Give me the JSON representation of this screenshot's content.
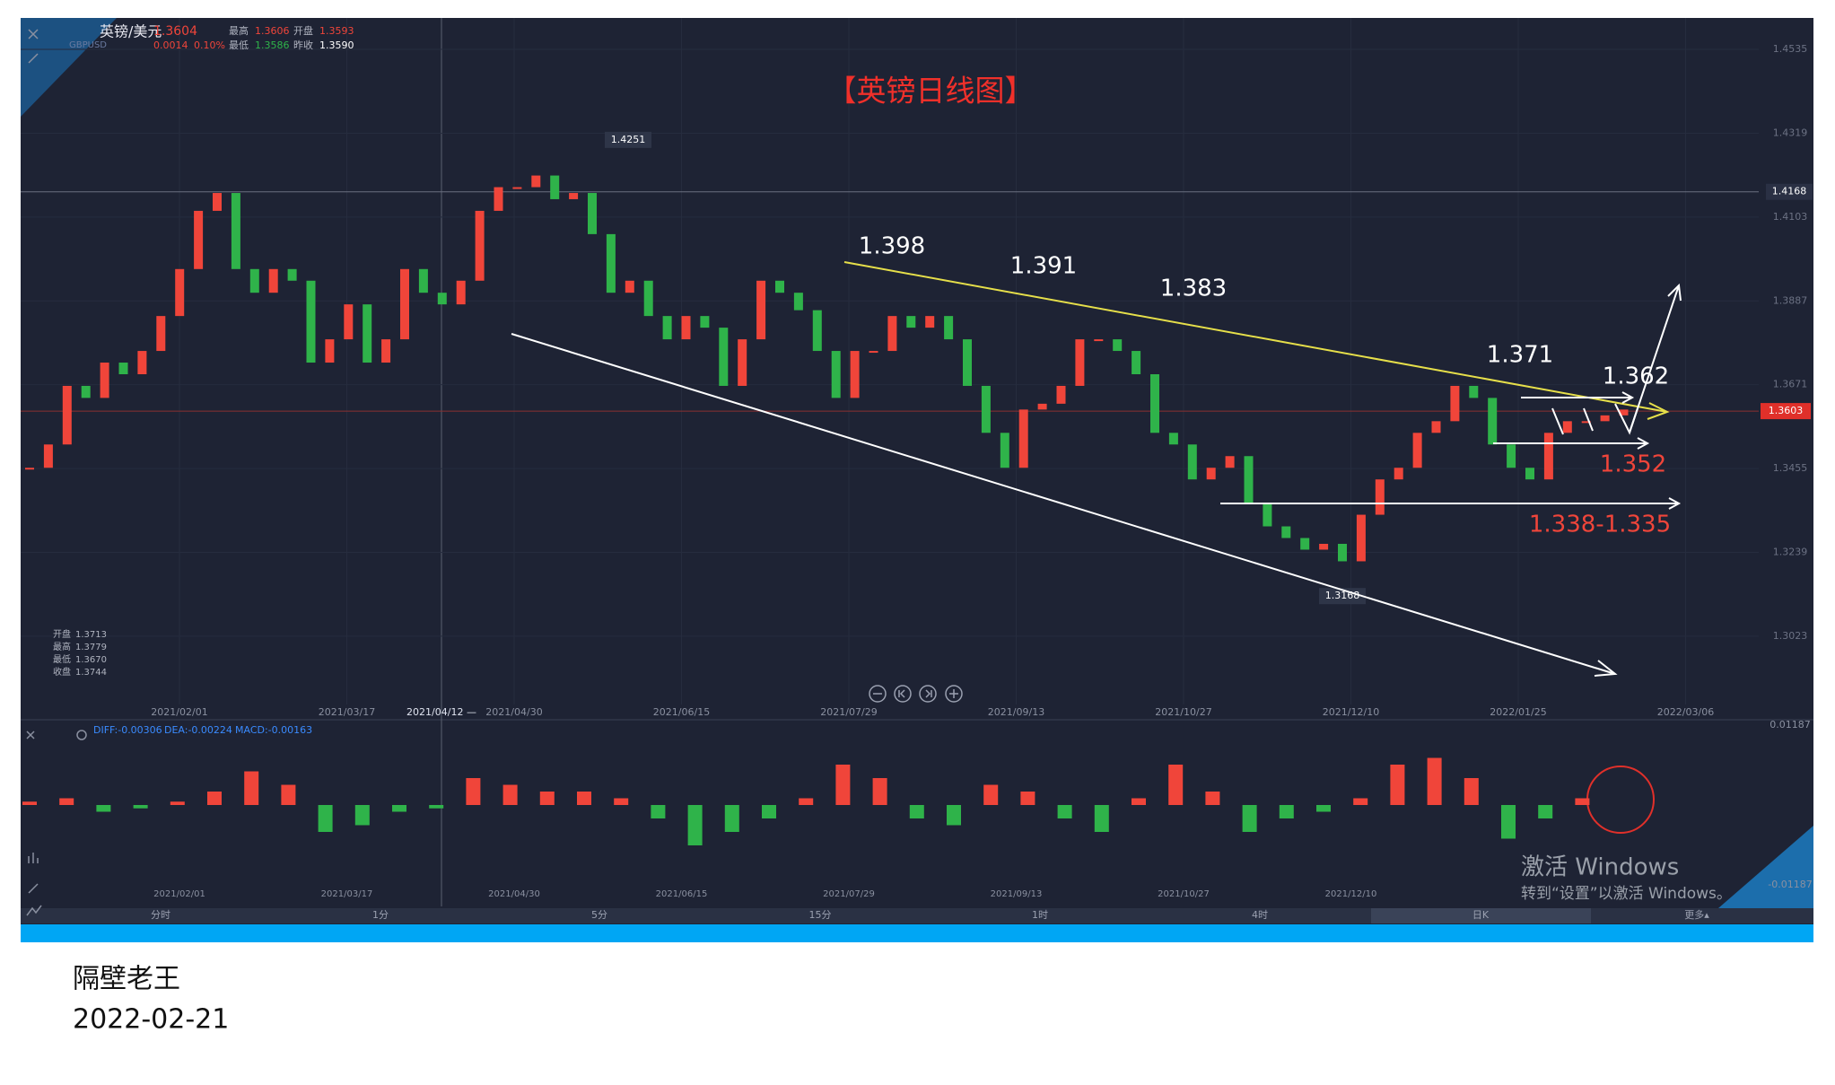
{
  "header": {
    "symbol": "英镑/美元",
    "code": "GBPUSD",
    "price": "1.3604",
    "change": "0.0014",
    "change_pct": "0.10%",
    "high_label": "最高",
    "high": "1.3606",
    "open_label": "开盘",
    "open": "1.3593",
    "low_label": "最低",
    "low": "1.3586",
    "prev_label": "昨收",
    "prev": "1.3590"
  },
  "ohlc_box": [
    {
      "label": "开盘",
      "value": "1.3713"
    },
    {
      "label": "最高",
      "value": "1.3779"
    },
    {
      "label": "最低",
      "value": "1.3670"
    },
    {
      "label": "收盘",
      "value": "1.3744"
    }
  ],
  "chart": {
    "title": "【英镑日线图】",
    "ylim": [
      1.2854,
      1.4616
    ],
    "yticks": [
      1.4535,
      1.4319,
      1.4103,
      1.3887,
      1.3671,
      1.3455,
      1.3239,
      1.3023
    ],
    "dates": [
      "2021/02/01",
      "2021/03/17",
      "2021/04/30",
      "2021/06/15",
      "2021/07/29",
      "2021/09/13",
      "2021/10/27",
      "2021/12/10",
      "2022/01/25",
      "2022/03/06"
    ],
    "crosshair_date": "2021/04/12 —",
    "high_marker": 1.4251,
    "low_marker": 1.3168,
    "alert_line": 1.4168,
    "current_line": 1.3603,
    "up_color": "#f0453a",
    "down_color": "#2fb34a",
    "closes": [
      1.3457,
      1.3517,
      1.3668,
      1.3637,
      1.3728,
      1.3698,
      1.3758,
      1.3848,
      1.3969,
      1.4119,
      1.4165,
      1.3969,
      1.3908,
      1.3969,
      1.3939,
      1.3728,
      1.3788,
      1.3878,
      1.3728,
      1.3788,
      1.3969,
      1.3908,
      1.3878,
      1.3939,
      1.4119,
      1.418,
      1.418,
      1.421,
      1.4149,
      1.4165,
      1.4059,
      1.3908,
      1.3939,
      1.3848,
      1.3788,
      1.3848,
      1.3818,
      1.3668,
      1.3788,
      1.3939,
      1.3908,
      1.3863,
      1.3758,
      1.3637,
      1.3758,
      1.3758,
      1.3848,
      1.3818,
      1.3848,
      1.3788,
      1.3668,
      1.3547,
      1.3457,
      1.3607,
      1.3622,
      1.3668,
      1.3788,
      1.3788,
      1.3758,
      1.3698,
      1.3547,
      1.3517,
      1.3427,
      1.3457,
      1.3487,
      1.3366,
      1.3306,
      1.3276,
      1.3246,
      1.3261,
      1.3216,
      1.3336,
      1.3427,
      1.3457,
      1.3547,
      1.3577,
      1.3668,
      1.3637,
      1.3517,
      1.3457,
      1.3427,
      1.3547,
      1.3577,
      1.3577,
      1.3592,
      1.3607
    ],
    "annotations": [
      {
        "text": "1.398",
        "color": "#ffffff"
      },
      {
        "text": "1.391",
        "color": "#ffffff"
      },
      {
        "text": "1.383",
        "color": "#ffffff"
      },
      {
        "text": "1.371",
        "color": "#ffffff"
      },
      {
        "text": "1.362",
        "color": "#ffffff"
      },
      {
        "text": "1.352",
        "color": "#f0453a"
      },
      {
        "text": "1.338-1.335",
        "color": "#f0453a"
      }
    ]
  },
  "macd": {
    "diff": "DIFF:-0.00306",
    "dea": "DEA:-0.00224",
    "macd": "MACD:-0.00163",
    "ylim": [
      -0.01187,
      0.01187
    ],
    "yticks": [
      -0.01187,
      0.01187
    ],
    "dates": [
      "2021/02/01",
      "2021/03/17",
      "2021/04/30",
      "2021/06/15",
      "2021/07/29",
      "2021/09/13",
      "2021/10/27",
      "2021/12/10"
    ],
    "hist": [
      0.0005,
      0.001,
      -0.001,
      -0.0005,
      0.0005,
      0.002,
      0.005,
      0.003,
      -0.004,
      -0.003,
      -0.001,
      -0.0005,
      0.004,
      0.003,
      0.002,
      0.002,
      0.001,
      -0.002,
      -0.006,
      -0.004,
      -0.002,
      0.001,
      0.006,
      0.004,
      -0.002,
      -0.003,
      0.003,
      0.002,
      -0.002,
      -0.004,
      0.001,
      0.006,
      0.002,
      -0.004,
      -0.002,
      -0.001,
      0.001,
      0.006,
      0.007,
      0.004,
      -0.005,
      -0.002,
      0.001
    ]
  },
  "timeframes": [
    "分时",
    "1分",
    "5分",
    "15分",
    "1时",
    "4时",
    "日K",
    "更多▴"
  ],
  "watermark": {
    "title": "激活 Windows",
    "subtitle": "转到“设置”以激活 Windows。"
  },
  "footer": {
    "author": "隔壁老王",
    "date": "2022-02-21"
  }
}
